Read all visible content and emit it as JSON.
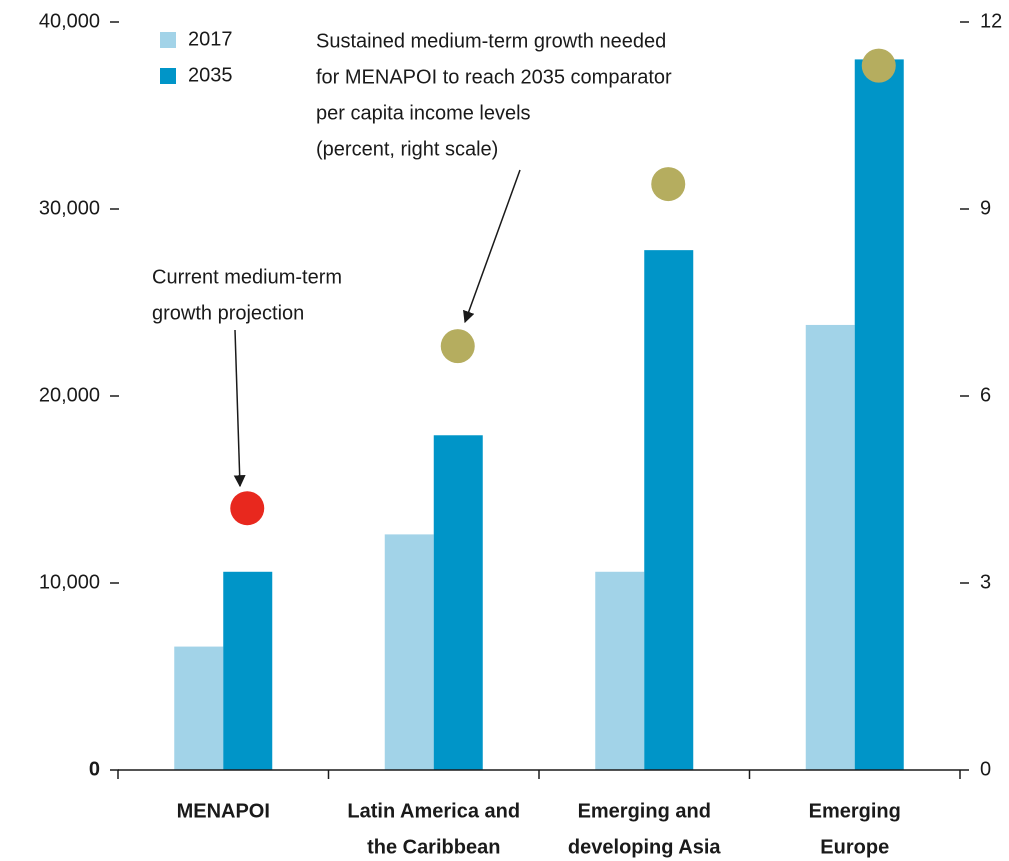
{
  "chart_data": {
    "type": "bar",
    "categories": [
      [
        "MENAPOI"
      ],
      [
        "Latin America and",
        "the Caribbean"
      ],
      [
        "Emerging and",
        "developing Asia"
      ],
      [
        "Emerging",
        "Europe"
      ]
    ],
    "series": [
      {
        "name": "2017",
        "color": "#a2d3e8",
        "values": [
          6600,
          12600,
          10600,
          23800
        ]
      },
      {
        "name": "2035",
        "color": "#0095c8",
        "values": [
          10600,
          17900,
          27800,
          38000
        ]
      }
    ],
    "markers": {
      "axis": "y2",
      "values": [
        4.2,
        6.8,
        9.4,
        11.3
      ],
      "colors": [
        "#e8281e",
        "#b5ad5f",
        "#b5ad5f",
        "#b5ad5f"
      ]
    },
    "ylim": [
      0,
      40000
    ],
    "yticks": [
      0,
      {
        "value": 10000,
        "label": "10,000"
      },
      {
        "value": 20000,
        "label": "20,000"
      },
      {
        "value": 30000,
        "label": "30,000"
      },
      {
        "value": 40000,
        "label": "40,000"
      }
    ],
    "y2lim": [
      0,
      12
    ],
    "y2ticks": [
      0,
      3,
      6,
      9,
      12
    ],
    "annotations": [
      {
        "lines": [
          "Current medium-term",
          "growth projection"
        ]
      },
      {
        "lines": [
          "Sustained medium-term growth needed",
          "for MENAPOI to reach 2035 comparator",
          "per capita income levels",
          "(percent, right scale)"
        ]
      }
    ],
    "legend": "top-left"
  }
}
